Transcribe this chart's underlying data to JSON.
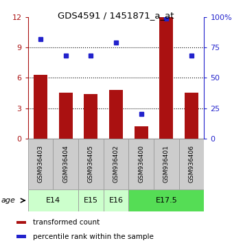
{
  "title": "GDS4591 / 1451871_a_at",
  "samples": [
    "GSM936403",
    "GSM936404",
    "GSM936405",
    "GSM936402",
    "GSM936400",
    "GSM936401",
    "GSM936406"
  ],
  "transformed_count": [
    6.3,
    4.5,
    4.4,
    4.8,
    1.2,
    12.0,
    4.5
  ],
  "percentile_rank": [
    82,
    68,
    68,
    79,
    20,
    99,
    68
  ],
  "left_ylim": [
    0,
    12
  ],
  "right_ylim": [
    0,
    100
  ],
  "left_yticks": [
    0,
    3,
    6,
    9,
    12
  ],
  "right_yticks": [
    0,
    25,
    50,
    75,
    100
  ],
  "right_yticklabels": [
    "0",
    "25",
    "50",
    "75",
    "100%"
  ],
  "bar_color": "#aa1111",
  "dot_color": "#2222cc",
  "age_groups": [
    {
      "label": "E14",
      "start": 0,
      "end": 2,
      "color": "#ccffcc"
    },
    {
      "label": "E15",
      "start": 2,
      "end": 3,
      "color": "#ccffcc"
    },
    {
      "label": "E16",
      "start": 3,
      "end": 4,
      "color": "#ccffcc"
    },
    {
      "label": "E17.5",
      "start": 4,
      "end": 7,
      "color": "#55dd55"
    }
  ],
  "age_label": "age",
  "legend_bar_label": "transformed count",
  "legend_dot_label": "percentile rank within the sample",
  "sample_box_color": "#cccccc",
  "figsize": [
    3.38,
    3.54
  ],
  "dpi": 100
}
